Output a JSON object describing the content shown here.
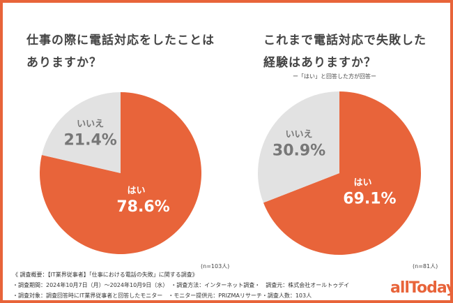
{
  "colors": {
    "yes": "#e8643a",
    "no": "#e2e2e2",
    "border": "#e8643a"
  },
  "chart_data": [
    {
      "type": "pie",
      "title": "仕事の際に電話対応をしたことはありますか？",
      "labels": [
        "はい",
        "いいえ"
      ],
      "values": [
        78.6,
        21.4
      ],
      "value_labels": [
        "78.6%",
        "21.4%"
      ],
      "note": "(n=103人)"
    },
    {
      "type": "pie",
      "title": "これまで電話対応で失敗した経験はありますか？",
      "subtitle": "ー「はい」と回答した方が回答ー",
      "labels": [
        "はい",
        "いいえ"
      ],
      "values": [
        69.1,
        30.9
      ],
      "value_labels": [
        "69.1%",
        "30.9%"
      ],
      "note": "(n=81人)"
    }
  ],
  "footer": {
    "line1": "《 調査概要：【IT業界従事者】「仕事における電話の失敗」に関する調査》",
    "line2": "・調査期間：2024年10月7日（月）～2024年10月9日（水）　・調査方法：インターネット調査・　調査元：株式会社オールトゥデイ",
    "line3": "・調査対象：調査回答時にIT業界従事者と回答したモニター　・モニター提供元：PRIZMAリサーチ・調査人数：103人"
  },
  "logo": "allToday"
}
